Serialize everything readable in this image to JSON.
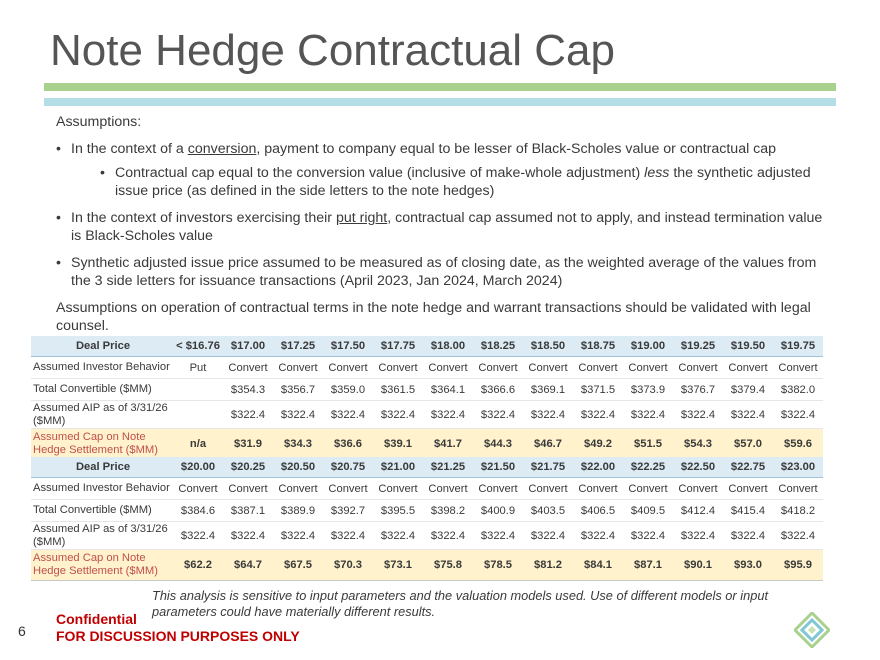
{
  "title": "Note Hedge Contractual Cap",
  "colors": {
    "green_bar": "#a9d18e",
    "blue_bar": "#b4dde6",
    "header_bg": "#dcebf4",
    "cap_bg": "#fff2cc",
    "accent_red": "#c00000"
  },
  "assumptions": {
    "heading": "Assumptions:",
    "bullet1": {
      "pre": "In the context of a ",
      "link": "conversion",
      "post": ", payment to company equal to be lesser of Black-Scholes value or contractual cap"
    },
    "bullet1_sub": {
      "pre": "Contractual cap equal to the conversion value (inclusive of make-whole adjustment) ",
      "em": "less",
      "post": " the synthetic adjusted issue price (as defined in the side letters to the note hedges)"
    },
    "bullet2": {
      "pre": "In the context of investors exercising their ",
      "link": "put right",
      "post": ", contractual cap assumed not to apply, and instead termination value is Black-Scholes value"
    },
    "bullet3": "Synthetic adjusted issue price assumed to be measured as of closing date, as the weighted average of the values from the 3 side letters for issuance transactions (April 2023, Jan 2024, March 2024)",
    "closing": "Assumptions on operation of contractual terms in the note hedge and warrant transactions should be validated with legal counsel."
  },
  "row_labels": {
    "deal_price": "Deal Price",
    "behavior": "Assumed Investor Behavior",
    "total_convertible": "Total Convertible ($MM)",
    "aip": "Assumed AIP as of 3/31/26 ($MM)",
    "cap": "Assumed Cap on Note Hedge Settlement ($MM)"
  },
  "table1": {
    "deal_price": [
      "< $16.76",
      "$17.00",
      "$17.25",
      "$17.50",
      "$17.75",
      "$18.00",
      "$18.25",
      "$18.50",
      "$18.75",
      "$19.00",
      "$19.25",
      "$19.50",
      "$19.75"
    ],
    "behavior": [
      "Put",
      "Convert",
      "Convert",
      "Convert",
      "Convert",
      "Convert",
      "Convert",
      "Convert",
      "Convert",
      "Convert",
      "Convert",
      "Convert",
      "Convert"
    ],
    "total_convertible": [
      "",
      "$354.3",
      "$356.7",
      "$359.0",
      "$361.5",
      "$364.1",
      "$366.6",
      "$369.1",
      "$371.5",
      "$373.9",
      "$376.7",
      "$379.4",
      "$382.0"
    ],
    "aip": [
      "",
      "$322.4",
      "$322.4",
      "$322.4",
      "$322.4",
      "$322.4",
      "$322.4",
      "$322.4",
      "$322.4",
      "$322.4",
      "$322.4",
      "$322.4",
      "$322.4"
    ],
    "cap": [
      "n/a",
      "$31.9",
      "$34.3",
      "$36.6",
      "$39.1",
      "$41.7",
      "$44.3",
      "$46.7",
      "$49.2",
      "$51.5",
      "$54.3",
      "$57.0",
      "$59.6"
    ]
  },
  "table2": {
    "deal_price": [
      "$20.00",
      "$20.25",
      "$20.50",
      "$20.75",
      "$21.00",
      "$21.25",
      "$21.50",
      "$21.75",
      "$22.00",
      "$22.25",
      "$22.50",
      "$22.75",
      "$23.00"
    ],
    "behavior": [
      "Convert",
      "Convert",
      "Convert",
      "Convert",
      "Convert",
      "Convert",
      "Convert",
      "Convert",
      "Convert",
      "Convert",
      "Convert",
      "Convert",
      "Convert"
    ],
    "total_convertible": [
      "$384.6",
      "$387.1",
      "$389.9",
      "$392.7",
      "$395.5",
      "$398.2",
      "$400.9",
      "$403.5",
      "$406.5",
      "$409.5",
      "$412.4",
      "$415.4",
      "$418.2"
    ],
    "aip": [
      "$322.4",
      "$322.4",
      "$322.4",
      "$322.4",
      "$322.4",
      "$322.4",
      "$322.4",
      "$322.4",
      "$322.4",
      "$322.4",
      "$322.4",
      "$322.4",
      "$322.4"
    ],
    "cap": [
      "$62.2",
      "$64.7",
      "$67.5",
      "$70.3",
      "$73.1",
      "$75.8",
      "$78.5",
      "$81.2",
      "$84.1",
      "$87.1",
      "$90.1",
      "$93.0",
      "$95.9"
    ]
  },
  "footer": {
    "note": "This analysis is sensitive to input parameters and the valuation models used.  Use of different models or input parameters could have materially different results.",
    "confidential": "Confidential",
    "discussion": "FOR DISCUSSION PURPOSES ONLY",
    "page_number": "6"
  },
  "logo_icon": "diamond-logo-icon"
}
